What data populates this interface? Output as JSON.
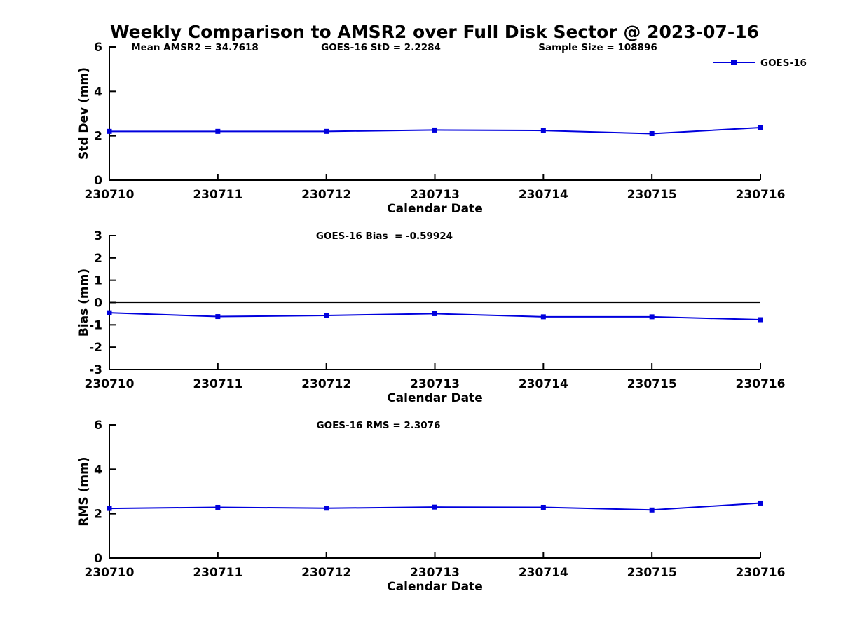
{
  "page": {
    "title": "Weekly Comparison to AMSR2 over Full Disk Sector @ 2023-07-16"
  },
  "colors": {
    "series": "#0000dd",
    "axis": "#000000",
    "zero_line": "#000000",
    "background": "#ffffff",
    "text": "#000000"
  },
  "legend": {
    "label": "GOES-16",
    "position": "top-right"
  },
  "chart_data": [
    {
      "id": "std-dev",
      "type": "line",
      "annotations": [
        "Mean AMSR2 = 34.7618",
        "GOES-16 StD = 2.2284",
        "Sample Size = 108896"
      ],
      "categories": [
        "230710",
        "230711",
        "230712",
        "230713",
        "230714",
        "230715",
        "230716"
      ],
      "series": [
        {
          "name": "GOES-16",
          "values": [
            2.2,
            2.2,
            2.2,
            2.26,
            2.24,
            2.1,
            2.37
          ]
        }
      ],
      "xlabel": "Calendar Date",
      "ylabel": "Std Dev (mm)",
      "ylim": [
        0,
        6
      ],
      "yticks": [
        0,
        2,
        4,
        6
      ],
      "zero_line": false,
      "show_legend": true,
      "grid": false,
      "marker": "square"
    },
    {
      "id": "bias",
      "type": "line",
      "annotations": [
        "GOES-16 Bias  = -0.59924"
      ],
      "categories": [
        "230710",
        "230711",
        "230712",
        "230713",
        "230714",
        "230715",
        "230716"
      ],
      "series": [
        {
          "name": "GOES-16",
          "values": [
            -0.46,
            -0.63,
            -0.58,
            -0.5,
            -0.64,
            -0.64,
            -0.77
          ]
        }
      ],
      "xlabel": "Calendar Date",
      "ylabel": "Bias (mm)",
      "ylim": [
        -3,
        3
      ],
      "yticks": [
        -3,
        -2,
        -1,
        0,
        1,
        2,
        3
      ],
      "zero_line": true,
      "show_legend": false,
      "grid": false,
      "marker": "square"
    },
    {
      "id": "rms",
      "type": "line",
      "annotations": [
        "GOES-16 RMS = 2.3076"
      ],
      "categories": [
        "230710",
        "230711",
        "230712",
        "230713",
        "230714",
        "230715",
        "230716"
      ],
      "series": [
        {
          "name": "GOES-16",
          "values": [
            2.24,
            2.29,
            2.25,
            2.3,
            2.29,
            2.17,
            2.48
          ]
        }
      ],
      "xlabel": "Calendar Date",
      "ylabel": "RMS (mm)",
      "ylim": [
        0,
        6
      ],
      "yticks": [
        0,
        2,
        4,
        6
      ],
      "zero_line": false,
      "show_legend": false,
      "grid": false,
      "marker": "square"
    }
  ]
}
